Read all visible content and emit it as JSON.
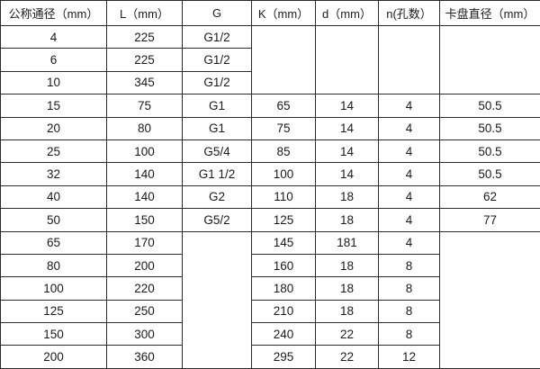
{
  "chart_data": {
    "type": "table",
    "title": "",
    "headers": [
      "公称通径（mm）",
      "L（mm）",
      "G",
      "K（mm）",
      "d（mm）",
      "n(孔数）",
      "卡盘直径（mm）"
    ],
    "rows": [
      [
        "4",
        "225",
        "G1/2",
        "",
        "",
        "",
        ""
      ],
      [
        "6",
        "225",
        "G1/2",
        null,
        null,
        null,
        null
      ],
      [
        "10",
        "345",
        "G1/2",
        null,
        null,
        null,
        null
      ],
      [
        "15",
        "75",
        "G1",
        "65",
        "14",
        "4",
        "50.5"
      ],
      [
        "20",
        "80",
        "G1",
        "75",
        "14",
        "4",
        "50.5"
      ],
      [
        "25",
        "100",
        "G5/4",
        "85",
        "14",
        "4",
        "50.5"
      ],
      [
        "32",
        "140",
        "G1 1/2",
        "100",
        "14",
        "4",
        "50.5"
      ],
      [
        "40",
        "140",
        "G2",
        "110",
        "18",
        "4",
        "62"
      ],
      [
        "50",
        "150",
        "G5/2",
        "125",
        "18",
        "4",
        "77"
      ],
      [
        "65",
        "170",
        "",
        "145",
        "181",
        "4",
        ""
      ],
      [
        "80",
        "200",
        null,
        "160",
        "18",
        "8",
        null
      ],
      [
        "100",
        "220",
        null,
        "180",
        "18",
        "8",
        null
      ],
      [
        "125",
        "250",
        null,
        "210",
        "18",
        "8",
        null
      ],
      [
        "150",
        "300",
        null,
        "240",
        "22",
        "8",
        null
      ],
      [
        "200",
        "360",
        null,
        "295",
        "22",
        "12",
        null
      ]
    ],
    "merges": [
      {
        "row": 0,
        "col": 3,
        "rowspan": 3
      },
      {
        "row": 0,
        "col": 4,
        "rowspan": 3
      },
      {
        "row": 0,
        "col": 5,
        "rowspan": 3
      },
      {
        "row": 0,
        "col": 6,
        "rowspan": 3
      },
      {
        "row": 9,
        "col": 2,
        "rowspan": 6
      },
      {
        "row": 9,
        "col": 6,
        "rowspan": 6
      }
    ],
    "layout_hints": {
      "grid": "all-borders",
      "legend_position": "none"
    },
    "colors": {
      "border": "#2b2b2b",
      "text": "#1a1a1a",
      "background": "#ffffff"
    }
  }
}
